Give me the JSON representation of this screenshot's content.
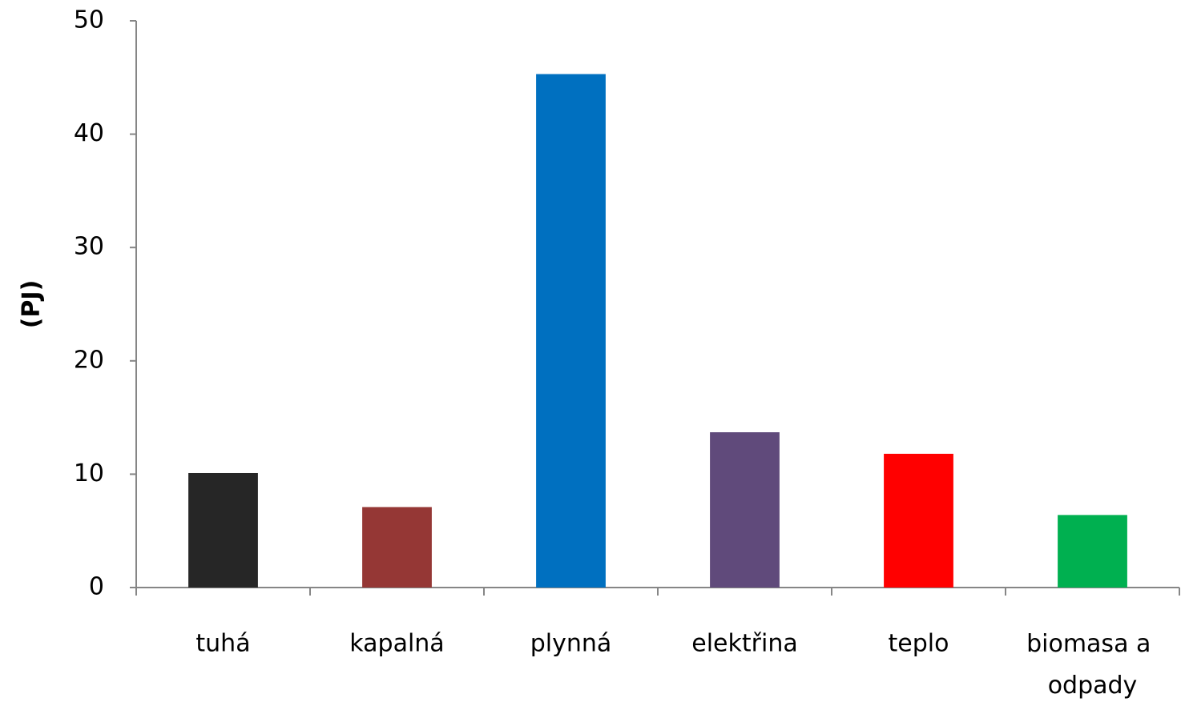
{
  "chart_data": {
    "type": "bar",
    "y_label": "(PJ)",
    "categories": [
      "tuhá",
      "kapalná",
      "plynná",
      "elektřina",
      "teplo",
      "biomasa a odpady"
    ],
    "values": [
      10.1,
      7.1,
      45.3,
      13.7,
      11.8,
      6.4
    ],
    "colors": [
      "#262626",
      "#953735",
      "#0070c0",
      "#604a7b",
      "#ff0000",
      "#00b050"
    ],
    "ylim": [
      0,
      50
    ],
    "yticks": [
      0,
      10,
      20,
      30,
      40,
      50
    ],
    "grid": false
  }
}
